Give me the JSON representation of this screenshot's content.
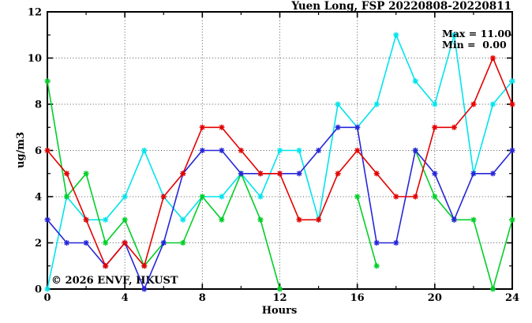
{
  "window": {
    "background": "#ffffff",
    "border_color": "#000000"
  },
  "watermark": "© 2026 ENVF, HKUST",
  "watermark_color": "#e2e2e2",
  "chart_data": {
    "type": "line",
    "title": "Yuen Long, FSP 20220808-20220811",
    "xlabel": "Hours",
    "ylabel": "ug/m3",
    "xlim": [
      0,
      24
    ],
    "ylim": [
      0,
      12
    ],
    "x_major_ticks": [
      0,
      4,
      8,
      12,
      16,
      20,
      24
    ],
    "x_minor_step": 2,
    "y_major_ticks": [
      0,
      2,
      4,
      6,
      8,
      10,
      12
    ],
    "y_minor_step": 1,
    "grid": true,
    "grid_color": "#555555",
    "legend_position": "none",
    "marker": "star",
    "x": [
      0,
      1,
      2,
      3,
      4,
      5,
      6,
      7,
      8,
      9,
      10,
      11,
      12,
      13,
      14,
      15,
      16,
      17,
      18,
      19,
      20,
      21,
      22,
      23,
      24
    ],
    "series": [
      {
        "name": "cyan-series",
        "color": "#00e4ec",
        "values": [
          0,
          4,
          3,
          3,
          4,
          6,
          4,
          3,
          4,
          4,
          5,
          4,
          6,
          6,
          3,
          8,
          7,
          8,
          11,
          9,
          8,
          11,
          5,
          8,
          9
        ]
      },
      {
        "name": "green-series",
        "color": "#00cf28",
        "values": [
          9,
          4,
          5,
          2,
          3,
          1,
          2,
          2,
          4,
          3,
          5,
          3,
          0,
          null,
          null,
          null,
          4,
          1,
          null,
          6,
          4,
          3,
          3,
          0,
          3
        ]
      },
      {
        "name": "blue-series",
        "color": "#2626d8",
        "values": [
          3,
          2,
          2,
          1,
          2,
          0,
          2,
          5,
          6,
          6,
          5,
          5,
          5,
          5,
          6,
          7,
          7,
          2,
          2,
          6,
          5,
          3,
          5,
          5,
          6
        ]
      },
      {
        "name": "red-series",
        "color": "#e40000",
        "values": [
          6,
          5,
          3,
          1,
          2,
          1,
          4,
          5,
          7,
          7,
          6,
          5,
          5,
          3,
          3,
          5,
          6,
          5,
          4,
          4,
          7,
          7,
          8,
          10,
          8
        ]
      }
    ],
    "annotations": {
      "max_label": "Max = 11.00",
      "min_label": "Min =  0.00"
    }
  }
}
